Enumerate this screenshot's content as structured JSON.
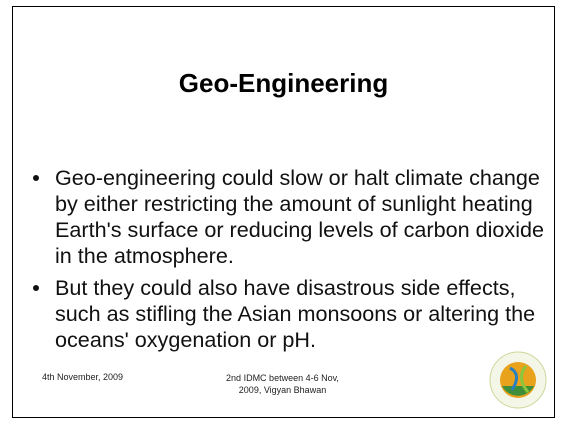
{
  "slide": {
    "title": "Geo-Engineering",
    "bullets": [
      "Geo-engineering could slow or halt climate change by either restricting the amount of sunlight heating Earth's surface or reducing levels of carbon dioxide in the atmosphere.",
      "But they could also have disastrous side effects, such as stifling the Asian monsoons or altering the oceans' oxygenation or pH."
    ],
    "footer": {
      "date": "4th November, 2009",
      "event": "2nd IDMC between 4-6 Nov, 2009, Vigyan Bhawan"
    }
  }
}
